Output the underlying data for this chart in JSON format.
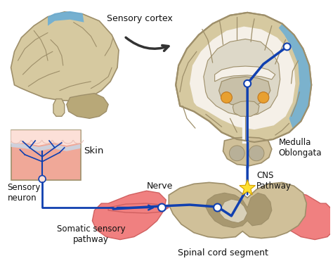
{
  "background_color": "#ffffff",
  "labels": {
    "sensory_cortex": "Sensory cortex",
    "skin": "Skin",
    "sensory_neuron": "Sensory\nneuron",
    "nerve": "Nerve",
    "somatic_sensory_pathway": "Somatic sensory\npathway",
    "medulla_oblongata": "Medulla\nOblongata",
    "cns_pathway": "CNS\nPathway",
    "spinal_cord_segment": "Spinal cord segment"
  },
  "colors": {
    "brain_fill": "#d6c9a0",
    "brain_outline": "#9e8f6a",
    "brain_dark": "#b8a878",
    "blue_stripe": "#6baed6",
    "skin_pink": "#f0a898",
    "skin_light": "#fce0d8",
    "skin_blue": "#c8d8e8",
    "pathway_blue": "#1040b0",
    "spinal_beige": "#d0c099",
    "spinal_dark": "#a89870",
    "muscle_pink": "#f08080",
    "muscle_outline": "#d06060",
    "node_white": "#ffffff",
    "star_yellow": "#ffe030",
    "star_outline": "#d4a000",
    "arrow_dark": "#333333",
    "text_color": "#111111",
    "orange_dot": "#e8a030",
    "white_matter": "#f5f0e8",
    "corpus": "#e8e0d0"
  },
  "figsize": [
    4.74,
    3.98
  ],
  "dpi": 100
}
